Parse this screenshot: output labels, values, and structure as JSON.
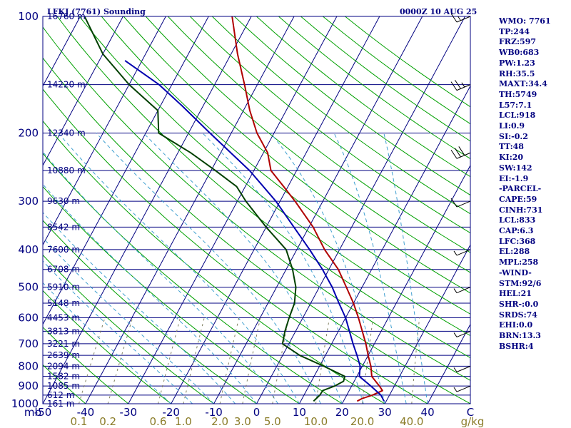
{
  "title_left": "LFKJ (7761) Sounding",
  "title_right": "0000Z 10 AUG 25",
  "colors": {
    "frame": "#000080",
    "isobar": "#000080",
    "isotherm": "#000080",
    "dry_adiabat": "#00a000",
    "moist_adiabat": "#40a0d0",
    "mixing_ratio": "#808060",
    "temperature": "#b00000",
    "dewpoint": "#004000",
    "parcel": "#0000b0",
    "wind_barb": "#000000",
    "index_text": "#000080"
  },
  "chart_data": {
    "type": "line",
    "diagram": "Skew-T log-P",
    "pressure_axis": {
      "units": "mb",
      "scale": "log",
      "range": [
        1000,
        100
      ],
      "labels": [
        "100",
        "200",
        "300",
        "400",
        "500",
        "600",
        "700",
        "800",
        "900",
        "1000"
      ]
    },
    "temperature_axis": {
      "units": "C",
      "range": [
        -50,
        50
      ],
      "labels": [
        "-50",
        "-40",
        "-30",
        "-20",
        "-10",
        "0",
        "10",
        "20",
        "30",
        "40"
      ],
      "unit_label": "C",
      "pressure_unit_label": "mb"
    },
    "mixing_ratio_axis": {
      "units": "g/kg",
      "labels": [
        "0.1",
        "0.2",
        "0.6",
        "1.0",
        "2.0",
        "3.0",
        "5.0",
        "10.0",
        "20.0",
        "40.0"
      ],
      "unit_label": "g/kg"
    },
    "height_labels": [
      {
        "p": 100,
        "text": "16760 m"
      },
      {
        "p": 150,
        "text": "14220 m"
      },
      {
        "p": 200,
        "text": "12340 m"
      },
      {
        "p": 250,
        "text": "10880 m"
      },
      {
        "p": 300,
        "text": "9630 m"
      },
      {
        "p": 350,
        "text": "8542 m"
      },
      {
        "p": 400,
        "text": "7600 m"
      },
      {
        "p": 450,
        "text": "6708 m"
      },
      {
        "p": 500,
        "text": "5910 m"
      },
      {
        "p": 550,
        "text": "5148 m"
      },
      {
        "p": 600,
        "text": "4453 m"
      },
      {
        "p": 650,
        "text": "3813 m"
      },
      {
        "p": 700,
        "text": "3221 m"
      },
      {
        "p": 750,
        "text": "2639 m"
      },
      {
        "p": 800,
        "text": "2094 m"
      },
      {
        "p": 850,
        "text": "1582 m"
      },
      {
        "p": 900,
        "text": "1085 m"
      },
      {
        "p": 950,
        "text": "612 m"
      },
      {
        "p": 1000,
        "text": "161 m"
      }
    ],
    "series": [
      {
        "key": "temperature",
        "values": [
          [
            985,
            23.2
          ],
          [
            970,
            24
          ],
          [
            950,
            26
          ],
          [
            925,
            27.8
          ],
          [
            900,
            26.5
          ],
          [
            850,
            23.5
          ],
          [
            800,
            22
          ],
          [
            750,
            20
          ],
          [
            700,
            18
          ],
          [
            650,
            15.6
          ],
          [
            600,
            13
          ],
          [
            550,
            10
          ],
          [
            500,
            6.3
          ],
          [
            450,
            2.2
          ],
          [
            400,
            -3.5
          ],
          [
            350,
            -9
          ],
          [
            300,
            -16.5
          ],
          [
            275,
            -21
          ],
          [
            250,
            -26
          ],
          [
            225,
            -29
          ],
          [
            200,
            -34
          ],
          [
            175,
            -38.5
          ],
          [
            150,
            -43
          ],
          [
            125,
            -48.5
          ],
          [
            100,
            -54.5
          ]
        ]
      },
      {
        "key": "dewpoint",
        "values": [
          [
            985,
            13
          ],
          [
            950,
            13.7
          ],
          [
            925,
            13.8
          ],
          [
            900,
            16
          ],
          [
            875,
            17.5
          ],
          [
            850,
            17.2
          ],
          [
            800,
            11
          ],
          [
            750,
            4
          ],
          [
            700,
            -1.5
          ],
          [
            650,
            -2.5
          ],
          [
            600,
            -3.2
          ],
          [
            550,
            -3.8
          ],
          [
            500,
            -5.5
          ],
          [
            450,
            -8.5
          ],
          [
            400,
            -12.5
          ],
          [
            350,
            -20
          ],
          [
            300,
            -28
          ],
          [
            275,
            -32
          ],
          [
            250,
            -39
          ],
          [
            225,
            -47
          ],
          [
            200,
            -57
          ],
          [
            175,
            -60
          ],
          [
            150,
            -70
          ],
          [
            125,
            -80
          ],
          [
            100,
            -89
          ]
        ]
      },
      {
        "key": "parcel",
        "values": [
          [
            985,
            29.5
          ],
          [
            950,
            28
          ],
          [
            900,
            24.5
          ],
          [
            850,
            20.6
          ],
          [
            800,
            19.5
          ],
          [
            750,
            17.4
          ],
          [
            700,
            15
          ],
          [
            650,
            12.6
          ],
          [
            600,
            10
          ],
          [
            550,
            6.6
          ],
          [
            500,
            3
          ],
          [
            450,
            -1.5
          ],
          [
            400,
            -7
          ],
          [
            350,
            -13.5
          ],
          [
            300,
            -21
          ],
          [
            250,
            -31
          ],
          [
            200,
            -45
          ],
          [
            170,
            -55
          ],
          [
            150,
            -63
          ],
          [
            130,
            -74
          ]
        ]
      }
    ],
    "wind_barbs": [
      {
        "p": 100,
        "speed_kt": 15
      },
      {
        "p": 150,
        "speed_kt": 25
      },
      {
        "p": 225,
        "speed_kt": 30
      },
      {
        "p": 300,
        "speed_kt": 10
      },
      {
        "p": 400,
        "speed_kt": 5
      },
      {
        "p": 500,
        "speed_kt": 5
      },
      {
        "p": 650,
        "speed_kt": 5
      },
      {
        "p": 800,
        "speed_kt": 5
      },
      {
        "p": 900,
        "speed_kt": 5
      }
    ],
    "indices": [
      "WMO: 7761",
      "TP:244",
      "FRZ:597",
      "WB0:683",
      "PW:1.23",
      "RH:35.5",
      "MAXT:34.4",
      "TH:5749",
      "L57:7.1",
      "LCL:918",
      "LI:0.9",
      "SI:-0.2",
      "TT:48",
      "KI:20",
      "SW:142",
      "EI:-1.9",
      "-PARCEL-",
      "CAPE:59",
      "CINH:731",
      "LCL:833",
      "CAP:6.3",
      "LFC:368",
      "EL:288",
      "MPL:258",
      "-WIND-",
      "STM:92/6",
      "HEL:21",
      "SHR-:0.0",
      "SRDS:74",
      "EHI:0.0",
      "BRN:13.3",
      "BSHR:4"
    ]
  }
}
